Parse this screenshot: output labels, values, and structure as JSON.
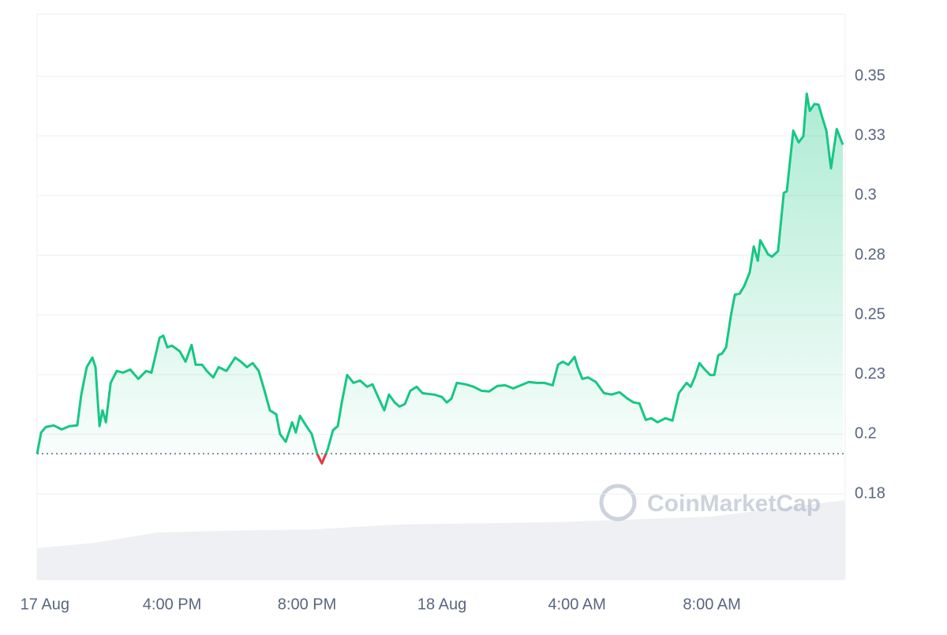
{
  "chart_data": {
    "type": "line",
    "watermark": "CoinMarketCap",
    "x": [
      12.0,
      12.12,
      12.26,
      12.49,
      12.73,
      12.96,
      13.19,
      13.31,
      13.47,
      13.64,
      13.73,
      13.85,
      13.94,
      14.04,
      14.18,
      14.36,
      14.55,
      14.76,
      15.0,
      15.23,
      15.39,
      15.51,
      15.63,
      15.74,
      15.86,
      16.0,
      16.23,
      16.4,
      16.58,
      16.7,
      16.89,
      17.03,
      17.22,
      17.38,
      17.61,
      17.87,
      18.04,
      18.22,
      18.39,
      18.57,
      18.74,
      18.9,
      19.09,
      19.2,
      19.37,
      19.56,
      19.67,
      19.79,
      19.98,
      20.14,
      20.3,
      20.44,
      20.61,
      20.77,
      20.91,
      21.03,
      21.19,
      21.38,
      21.57,
      21.78,
      21.94,
      22.13,
      22.29,
      22.43,
      22.6,
      22.74,
      22.9,
      23.06,
      23.25,
      23.42,
      23.58,
      23.77,
      24.0,
      24.14,
      24.28,
      24.44,
      24.7,
      24.94,
      25.17,
      25.4,
      25.64,
      25.87,
      26.11,
      26.34,
      26.57,
      26.81,
      27.04,
      27.28,
      27.44,
      27.58,
      27.74,
      27.93,
      28.02,
      28.16,
      28.33,
      28.56,
      28.8,
      29.03,
      29.26,
      29.5,
      29.68,
      29.85,
      30.04,
      30.2,
      30.39,
      30.62,
      30.83,
      31.02,
      31.25,
      31.37,
      31.49,
      31.63,
      31.79,
      31.95,
      32.07,
      32.19,
      32.3,
      32.42,
      32.56,
      32.68,
      32.82,
      32.96,
      33.12,
      33.24,
      33.36,
      33.43,
      33.59,
      33.66,
      33.78,
      33.96,
      34.13,
      34.22,
      34.41,
      34.57,
      34.71,
      34.81,
      34.9,
      35.04,
      35.16,
      35.27,
      35.39,
      35.53,
      35.7,
      35.88
    ],
    "series": [
      {
        "color": "#16c784",
        "below_color": "#ea3943",
        "values": [
          0.1918,
          0.2007,
          0.203,
          0.2037,
          0.202,
          0.2034,
          0.2037,
          0.2166,
          0.2281,
          0.2321,
          0.2281,
          0.2034,
          0.21,
          0.205,
          0.2215,
          0.2265,
          0.2258,
          0.2271,
          0.2232,
          0.2265,
          0.2258,
          0.2331,
          0.2404,
          0.2413,
          0.2364,
          0.2371,
          0.2347,
          0.2304,
          0.2374,
          0.2291,
          0.2291,
          0.2265,
          0.2238,
          0.2281,
          0.2265,
          0.2321,
          0.2304,
          0.2281,
          0.2298,
          0.2265,
          0.2182,
          0.21,
          0.2083,
          0.2001,
          0.1968,
          0.205,
          0.2007,
          0.2077,
          0.2034,
          0.2001,
          0.1918,
          0.1878,
          0.1935,
          0.2017,
          0.2034,
          0.2133,
          0.2248,
          0.2215,
          0.2225,
          0.2199,
          0.2209,
          0.2149,
          0.21,
          0.2166,
          0.2133,
          0.2116,
          0.2126,
          0.2182,
          0.2199,
          0.2172,
          0.2169,
          0.2166,
          0.2156,
          0.2133,
          0.2149,
          0.2215,
          0.2209,
          0.2199,
          0.2182,
          0.2179,
          0.2202,
          0.2205,
          0.2192,
          0.2205,
          0.2219,
          0.2215,
          0.2215,
          0.2205,
          0.2291,
          0.2304,
          0.2291,
          0.2324,
          0.2281,
          0.2232,
          0.2238,
          0.2219,
          0.2172,
          0.2166,
          0.2176,
          0.2149,
          0.2133,
          0.2129,
          0.206,
          0.2067,
          0.205,
          0.2067,
          0.2057,
          0.2172,
          0.2215,
          0.2199,
          0.2238,
          0.2298,
          0.2271,
          0.2248,
          0.2248,
          0.2331,
          0.2338,
          0.2364,
          0.2496,
          0.2585,
          0.2589,
          0.2622,
          0.2678,
          0.2787,
          0.2727,
          0.2813,
          0.2773,
          0.2754,
          0.2744,
          0.2767,
          0.3011,
          0.3018,
          0.3272,
          0.3223,
          0.3249,
          0.3427,
          0.3355,
          0.3384,
          0.3381,
          0.3328,
          0.3272,
          0.3114,
          0.3279,
          0.3213
        ]
      }
    ],
    "reference_line": 0.1918,
    "xlim": [
      12,
      35.95
    ],
    "xticks": [
      {
        "value": 12.23,
        "label": "17 Aug"
      },
      {
        "value": 16,
        "label": "4:00 PM"
      },
      {
        "value": 20,
        "label": "8:00 PM"
      },
      {
        "value": 24,
        "label": "18 Aug"
      },
      {
        "value": 28,
        "label": "4:00 AM"
      },
      {
        "value": 32,
        "label": "8:00 AM"
      }
    ],
    "ylim": [
      0.139,
      0.376
    ],
    "yticks": [
      {
        "value": 0.35,
        "label": "0.35"
      },
      {
        "value": 0.325,
        "label": "0.33"
      },
      0.3,
      {
        "value": 0.275,
        "label": "0.28"
      },
      0.25,
      {
        "value": 0.225,
        "label": "0.23"
      },
      0.2,
      {
        "value": 0.175,
        "label": "0.18"
      }
    ],
    "grid": true
  }
}
